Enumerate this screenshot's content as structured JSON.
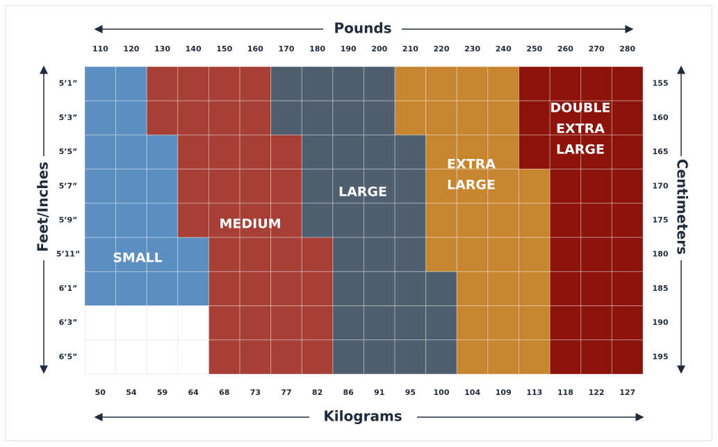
{
  "header": {
    "pounds_title": "Pounds",
    "kilograms_title": "Kilograms",
    "height_title": "Feet/Inches",
    "cm_title": "Centimeters"
  },
  "pounds": [
    110,
    120,
    130,
    140,
    150,
    160,
    170,
    180,
    190,
    200,
    210,
    220,
    230,
    240,
    250,
    260,
    270,
    280
  ],
  "kilograms": [
    50,
    54,
    59,
    64,
    68,
    73,
    77,
    82,
    86,
    91,
    95,
    100,
    104,
    109,
    113,
    118,
    122,
    127
  ],
  "heights": [
    "5’1”",
    "5’3”",
    "5’5”",
    "5’7”",
    "5’9”",
    "5’11”",
    "6’1”",
    "6’3”",
    "6’5”"
  ],
  "centimeters": [
    155,
    160,
    165,
    170,
    175,
    180,
    185,
    190,
    195
  ],
  "sizes": [
    {
      "lines": [
        "SMALL"
      ],
      "color": "#5b8fc2"
    },
    {
      "lines": [
        "MEDIUM"
      ],
      "color": "#a63f35"
    },
    {
      "lines": [
        "LARGE"
      ],
      "color": "#4f5f70"
    },
    {
      "lines": [
        "EXTRA",
        "LARGE"
      ],
      "color": "#c8852f"
    },
    {
      "lines": [
        "DOUBLE",
        "EXTRA",
        "LARGE"
      ],
      "color": "#8c130a"
    }
  ]
}
